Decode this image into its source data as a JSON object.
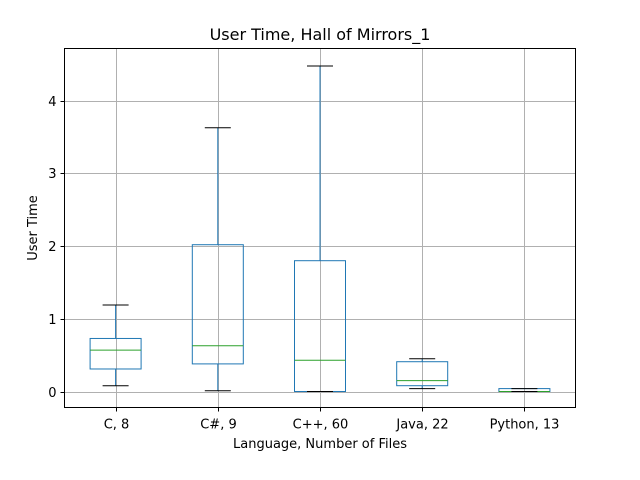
{
  "chart_data": {
    "type": "boxplot",
    "title": "User Time, Hall of Mirrors_1",
    "xlabel": "Language, Number of Files",
    "ylabel": "User Time",
    "categories": [
      "C, 8",
      "C#, 9",
      "C++, 60",
      "Java, 22",
      "Python, 13"
    ],
    "boxes": [
      {
        "whisker_low": 0.08,
        "q1": 0.31,
        "median": 0.57,
        "q3": 0.73,
        "whisker_high": 1.19
      },
      {
        "whisker_low": 0.01,
        "q1": 0.38,
        "median": 0.63,
        "q3": 2.02,
        "whisker_high": 3.63
      },
      {
        "whisker_low": 0.0,
        "q1": 0.0,
        "median": 0.43,
        "q3": 1.8,
        "whisker_high": 4.48
      },
      {
        "whisker_low": 0.04,
        "q1": 0.08,
        "median": 0.15,
        "q3": 0.41,
        "whisker_high": 0.45
      },
      {
        "whisker_low": 0.0,
        "q1": 0.0,
        "median": 0.0,
        "q3": 0.04,
        "whisker_high": 0.04
      }
    ],
    "ylim": [
      -0.22,
      4.72
    ],
    "yticks": [
      0,
      1,
      2,
      3,
      4
    ],
    "grid": true,
    "colors": {
      "box": "#1f77b4",
      "median": "#2ca02c",
      "cap": "#000000",
      "grid": "#b0b0b0"
    }
  }
}
